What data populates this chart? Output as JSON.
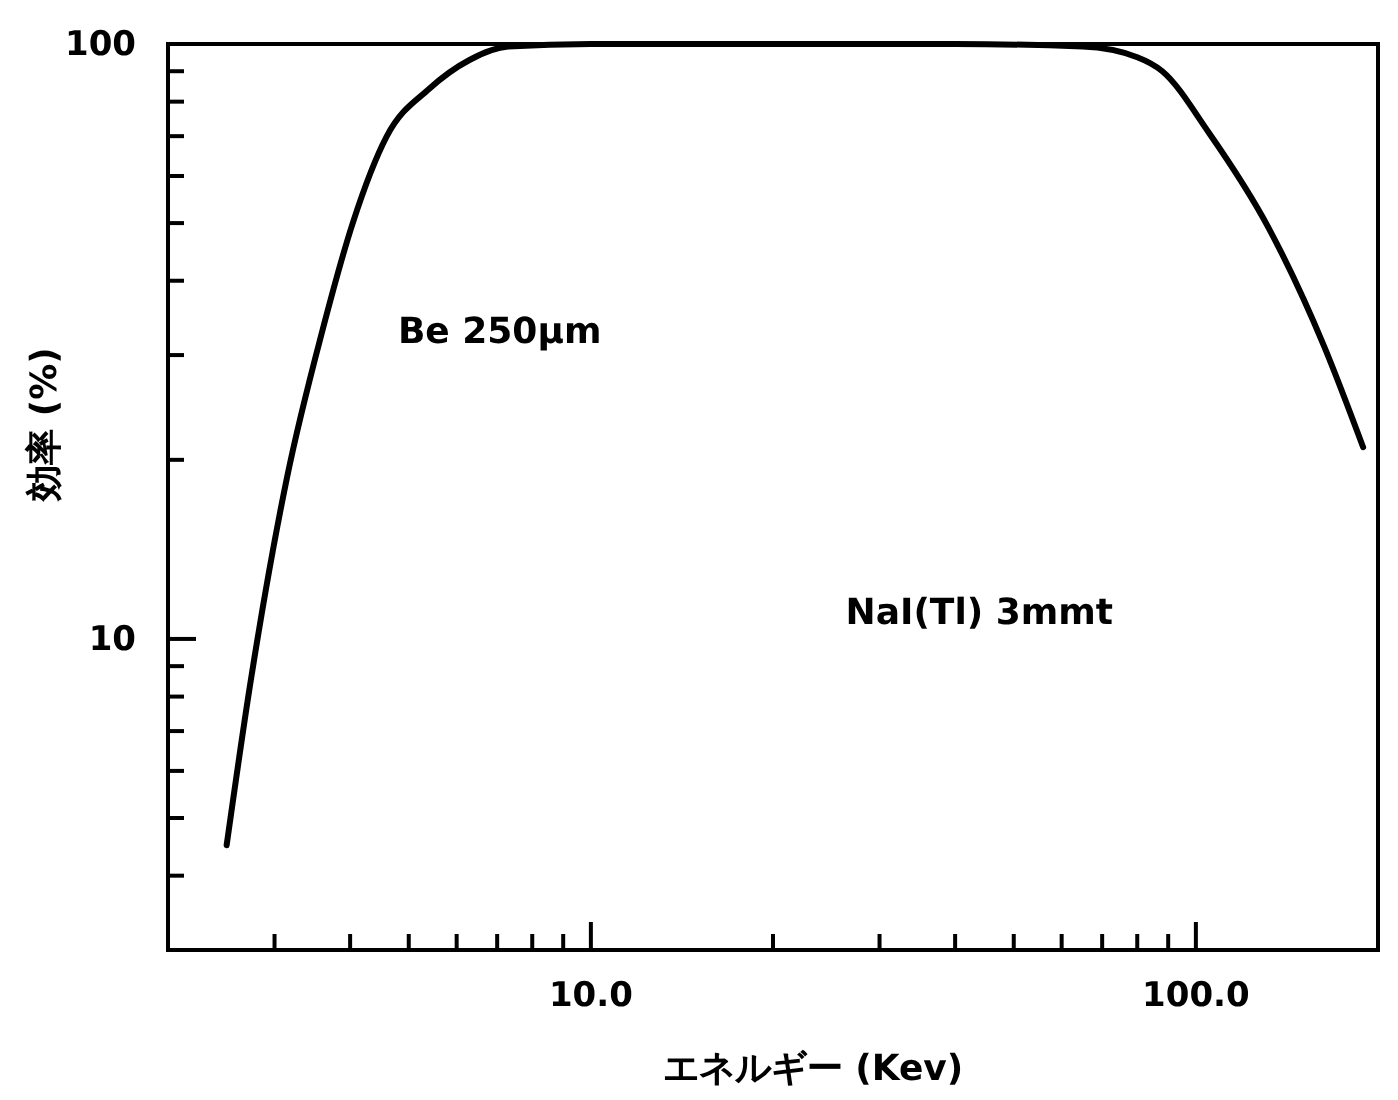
{
  "chart_data": {
    "type": "line",
    "xlabel": "エネルギー (Kev)",
    "ylabel": "効率 (%)",
    "log": "xy",
    "xlim": [
      2,
      200
    ],
    "ylim": [
      3,
      100
    ],
    "xticks": [
      {
        "value": 3,
        "label": null
      },
      {
        "value": 4,
        "label": null
      },
      {
        "value": 5,
        "label": null
      },
      {
        "value": 6,
        "label": null
      },
      {
        "value": 7,
        "label": null
      },
      {
        "value": 8,
        "label": null
      },
      {
        "value": 9,
        "label": null
      },
      {
        "value": 10,
        "label": "10.0"
      },
      {
        "value": 20,
        "label": null
      },
      {
        "value": 30,
        "label": null
      },
      {
        "value": 40,
        "label": null
      },
      {
        "value": 50,
        "label": null
      },
      {
        "value": 60,
        "label": null
      },
      {
        "value": 70,
        "label": null
      },
      {
        "value": 80,
        "label": null
      },
      {
        "value": 90,
        "label": null
      },
      {
        "value": 100,
        "label": "100.0"
      }
    ],
    "yticks": [
      {
        "value": 4,
        "label": null
      },
      {
        "value": 5,
        "label": null
      },
      {
        "value": 6,
        "label": null
      },
      {
        "value": 7,
        "label": null
      },
      {
        "value": 8,
        "label": null
      },
      {
        "value": 9,
        "label": null
      },
      10,
      {
        "value": 20,
        "label": null
      },
      {
        "value": 30,
        "label": null
      },
      {
        "value": 40,
        "label": null
      },
      {
        "value": 50,
        "label": null
      },
      {
        "value": 60,
        "label": null
      },
      {
        "value": 70,
        "label": null
      },
      {
        "value": 80,
        "label": null
      },
      {
        "value": 90,
        "label": null
      },
      100
    ],
    "x": [
      2.5,
      2.73,
      3.15,
      3.6,
      4.04,
      4.6,
      5.4,
      6.3,
      7.3,
      10,
      20,
      40,
      65,
      80,
      88,
      105,
      132,
      163,
      189
    ],
    "series": [
      {
        "color": "#000000",
        "values": [
          4.5,
          8.3,
          18.8,
          33,
          50,
          70,
          84,
          94,
          99,
          100,
          100,
          100,
          99,
          95,
          90,
          71,
          49,
          31,
          21
        ]
      }
    ],
    "grid": false,
    "marker": "none",
    "line_style": "solid",
    "annotations": [
      "Be 250μm",
      "NaI(Tl)  3mmt"
    ]
  }
}
